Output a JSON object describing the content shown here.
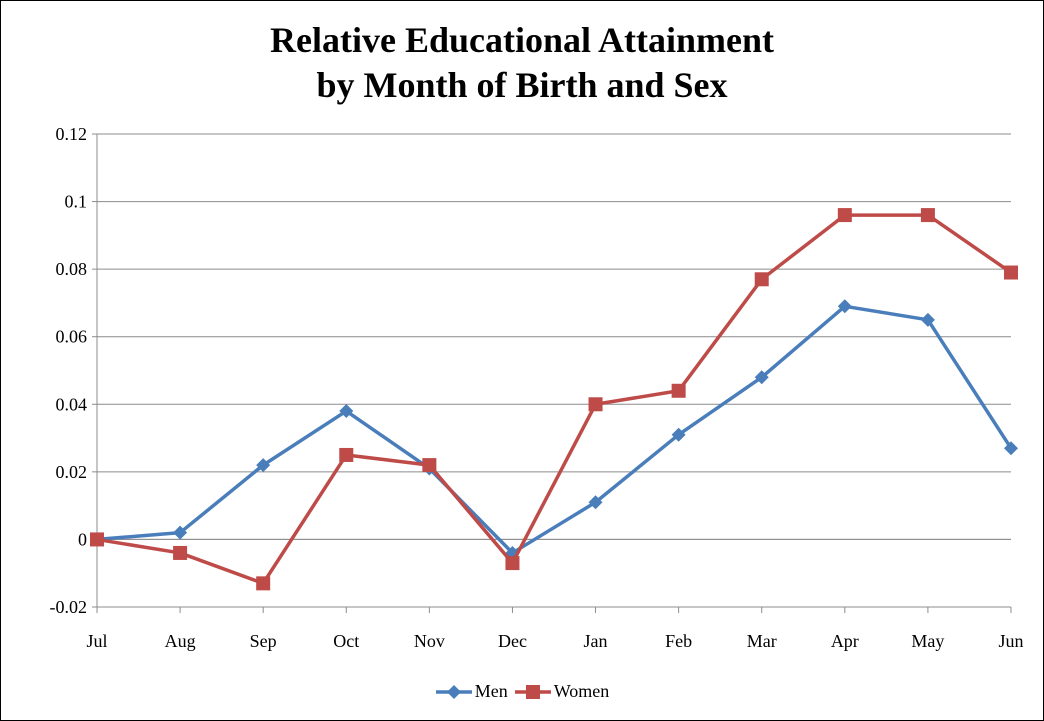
{
  "chart_data": {
    "type": "line",
    "title": [
      "Relative Educational Attainment",
      "by Month of Birth and Sex"
    ],
    "categories": [
      "Jul",
      "Aug",
      "Sep",
      "Oct",
      "Nov",
      "Dec",
      "Jan",
      "Feb",
      "Mar",
      "Apr",
      "May",
      "Jun"
    ],
    "ylim": [
      -0.02,
      0.12
    ],
    "yticks": [
      "-0.02",
      "0",
      "0.02",
      "0.04",
      "0.06",
      "0.08",
      "0.1",
      "0.12"
    ],
    "ytick_values": [
      -0.02,
      0,
      0.02,
      0.04,
      0.06,
      0.08,
      0.1,
      0.12
    ],
    "grid": true,
    "legend_position": "bottom",
    "series": [
      {
        "name": "Men",
        "color": "#4a7ebb",
        "marker": "diamond",
        "values": [
          0.0,
          0.002,
          0.022,
          0.038,
          0.021,
          -0.004,
          0.011,
          0.031,
          0.048,
          0.069,
          0.065,
          0.027
        ]
      },
      {
        "name": "Women",
        "color": "#be4b48",
        "marker": "square",
        "values": [
          0.0,
          -0.004,
          -0.013,
          0.025,
          0.022,
          -0.007,
          0.04,
          0.044,
          0.077,
          0.096,
          0.096,
          0.079
        ]
      }
    ]
  }
}
